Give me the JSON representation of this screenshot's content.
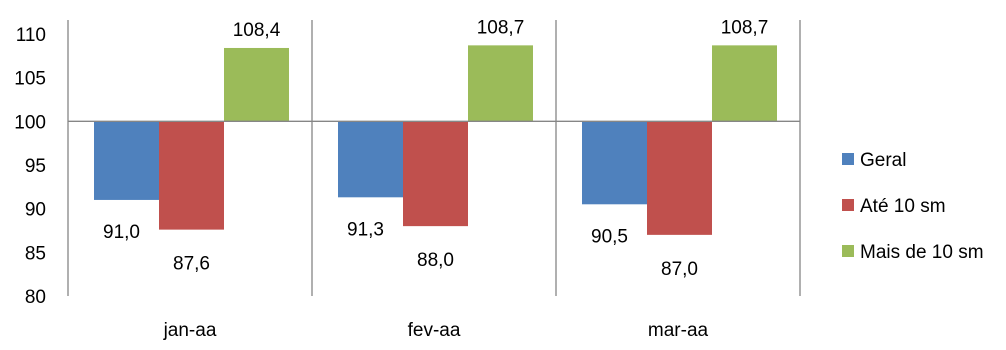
{
  "chart_data": {
    "type": "bar",
    "categories": [
      "jan-aa",
      "fev-aa",
      "mar-aa"
    ],
    "baseline": 100,
    "ylim": [
      80,
      110
    ],
    "yticks": [
      80,
      85,
      90,
      95,
      100,
      105,
      110
    ],
    "grid": false,
    "legend_position": "right",
    "series": [
      {
        "name": "Geral",
        "color": "#4F81BD",
        "values": [
          91.0,
          91.3,
          90.5
        ],
        "labels": [
          "91,0",
          "91,3",
          "90,5"
        ]
      },
      {
        "name": "Até 10 sm",
        "color": "#C0504D",
        "values": [
          87.6,
          88.0,
          87.0
        ],
        "labels": [
          "87,6",
          "88,0",
          "87,0"
        ]
      },
      {
        "name": "Mais de 10 sm",
        "color": "#9BBB59",
        "values": [
          108.4,
          108.7,
          108.7
        ],
        "labels": [
          "108,4",
          "108,7",
          "108,7"
        ]
      }
    ]
  }
}
